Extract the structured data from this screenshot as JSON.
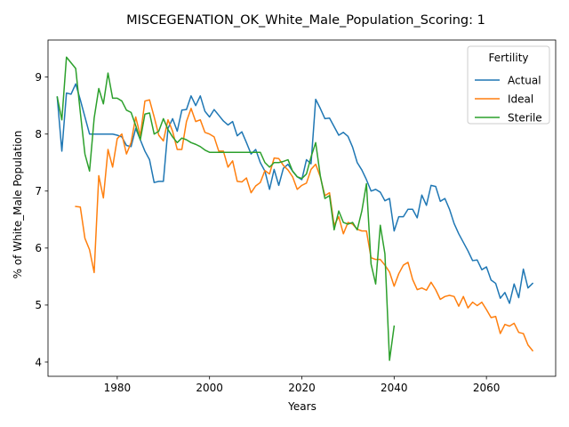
{
  "chart_data": {
    "type": "line",
    "title": "MISCEGENATION_OK_White_Male_Population_Scoring: 1",
    "xlabel": "Years",
    "ylabel": "% of White_Male Population",
    "xlim": [
      1965,
      2075
    ],
    "ylim": [
      3.75,
      9.65
    ],
    "xticks": [
      1980,
      2000,
      2020,
      2040,
      2060
    ],
    "yticks": [
      4,
      5,
      6,
      7,
      8,
      9
    ],
    "grid": false,
    "legend": {
      "title": "Fertility",
      "position": "top-right"
    },
    "series": [
      {
        "name": "Actual",
        "color": "#1f77b4",
        "x": [
          1967,
          1968,
          1969,
          1970,
          1971,
          1972,
          1973,
          1974,
          1975,
          1976,
          1977,
          1978,
          1979,
          1980,
          1981,
          1982,
          1983,
          1984,
          1985,
          1986,
          1987,
          1988,
          1989,
          1990,
          1991,
          1992,
          1993,
          1994,
          1995,
          1996,
          1997,
          1998,
          1999,
          2000,
          2001,
          2002,
          2003,
          2004,
          2005,
          2006,
          2007,
          2008,
          2009,
          2010,
          2011,
          2012,
          2013,
          2014,
          2015,
          2016,
          2017,
          2018,
          2019,
          2020,
          2021,
          2022,
          2023,
          2024,
          2025,
          2026,
          2027,
          2028,
          2029,
          2030,
          2031,
          2032,
          2033,
          2034,
          2035,
          2036,
          2037,
          2038,
          2039,
          2040,
          2041,
          2042,
          2043,
          2044,
          2045,
          2046,
          2047,
          2048,
          2049,
          2050,
          2051,
          2052,
          2053,
          2054,
          2055,
          2056,
          2057,
          2058,
          2059,
          2060,
          2061,
          2062,
          2063,
          2064,
          2065,
          2066,
          2067,
          2068,
          2069,
          2070
        ],
        "values": [
          8.65,
          7.7,
          8.72,
          8.7,
          8.88,
          8.6,
          8.3,
          8.0,
          8.0,
          8.0,
          8.0,
          8.0,
          8.0,
          7.98,
          7.95,
          7.8,
          7.78,
          8.1,
          7.9,
          7.7,
          7.55,
          7.15,
          7.17,
          7.17,
          8.1,
          8.27,
          8.05,
          8.42,
          8.43,
          8.67,
          8.5,
          8.67,
          8.4,
          8.3,
          8.43,
          8.33,
          8.23,
          8.16,
          8.22,
          7.97,
          8.04,
          7.85,
          7.65,
          7.73,
          7.5,
          7.35,
          7.03,
          7.38,
          7.1,
          7.4,
          7.47,
          7.35,
          7.25,
          7.2,
          7.55,
          7.48,
          8.61,
          8.45,
          8.27,
          8.28,
          8.13,
          7.98,
          8.03,
          7.96,
          7.77,
          7.5,
          7.37,
          7.2,
          7.0,
          7.03,
          6.98,
          6.83,
          6.87,
          6.3,
          6.55,
          6.55,
          6.68,
          6.68,
          6.53,
          6.93,
          6.75,
          7.1,
          7.08,
          6.82,
          6.87,
          6.68,
          6.43,
          6.25,
          6.1,
          5.95,
          5.78,
          5.79,
          5.62,
          5.67,
          5.44,
          5.38,
          5.12,
          5.22,
          5.03,
          5.37,
          5.13,
          5.63,
          5.3,
          5.38
        ]
      },
      {
        "name": "Ideal",
        "color": "#ff7f0e",
        "x": [
          1971,
          1972,
          1973,
          1974,
          1975,
          1976,
          1977,
          1978,
          1979,
          1980,
          1981,
          1982,
          1983,
          1984,
          1985,
          1986,
          1987,
          1988,
          1989,
          1990,
          1991,
          1992,
          1993,
          1994,
          1995,
          1996,
          1997,
          1998,
          1999,
          2000,
          2001,
          2002,
          2003,
          2004,
          2005,
          2006,
          2007,
          2008,
          2009,
          2010,
          2011,
          2012,
          2013,
          2014,
          2015,
          2016,
          2017,
          2018,
          2019,
          2020,
          2021,
          2022,
          2023,
          2024,
          2025,
          2026,
          2027,
          2028,
          2029,
          2030,
          2031,
          2032,
          2033,
          2034,
          2035,
          2036,
          2037,
          2038,
          2039,
          2040,
          2041,
          2042,
          2043,
          2044,
          2045,
          2046,
          2047,
          2048,
          2049,
          2050,
          2051,
          2052,
          2053,
          2054,
          2055,
          2056,
          2057,
          2058,
          2059,
          2060,
          2061,
          2062,
          2063,
          2064,
          2065,
          2066,
          2067,
          2068,
          2069,
          2070
        ],
        "values": [
          6.73,
          6.72,
          6.17,
          5.97,
          5.57,
          7.27,
          6.88,
          7.73,
          7.42,
          7.92,
          8.0,
          7.65,
          7.85,
          8.3,
          7.97,
          8.58,
          8.6,
          8.3,
          7.98,
          7.88,
          8.25,
          8.05,
          7.73,
          7.73,
          8.22,
          8.45,
          8.22,
          8.25,
          8.03,
          8.0,
          7.95,
          7.7,
          7.7,
          7.42,
          7.53,
          7.17,
          7.16,
          7.23,
          6.97,
          7.09,
          7.15,
          7.36,
          7.3,
          7.58,
          7.57,
          7.45,
          7.37,
          7.25,
          7.03,
          7.1,
          7.14,
          7.38,
          7.47,
          7.25,
          6.92,
          6.97,
          6.4,
          6.55,
          6.25,
          6.45,
          6.42,
          6.33,
          6.3,
          6.3,
          5.83,
          5.8,
          5.8,
          5.7,
          5.58,
          5.33,
          5.55,
          5.7,
          5.75,
          5.45,
          5.27,
          5.3,
          5.26,
          5.4,
          5.27,
          5.1,
          5.15,
          5.17,
          5.15,
          4.98,
          5.15,
          4.95,
          5.05,
          4.99,
          5.05,
          4.92,
          4.78,
          4.8,
          4.5,
          4.66,
          4.63,
          4.68,
          4.52,
          4.5,
          4.3,
          4.2
        ]
      },
      {
        "name": "Sterile",
        "color": "#2ca02c",
        "x": [
          1967,
          1968,
          1969,
          1970,
          1971,
          1972,
          1973,
          1974,
          1975,
          1976,
          1977,
          1978,
          1979,
          1980,
          1981,
          1982,
          1983,
          1984,
          1985,
          1986,
          1987,
          1988,
          1989,
          1990,
          1991,
          1992,
          1993,
          1994,
          1995,
          1996,
          1997,
          1998,
          1999,
          2000,
          2001,
          2002,
          2003,
          2004,
          2005,
          2006,
          2007,
          2008,
          2009,
          2010,
          2011,
          2012,
          2013,
          2014,
          2015,
          2016,
          2017,
          2018,
          2019,
          2020,
          2021,
          2022,
          2023,
          2024,
          2025,
          2026,
          2027,
          2028,
          2029,
          2030,
          2031,
          2032,
          2033,
          2034,
          2035,
          2036,
          2037,
          2038,
          2039,
          2040
        ],
        "values": [
          8.65,
          8.25,
          9.35,
          9.25,
          9.15,
          8.38,
          7.65,
          7.35,
          8.28,
          8.8,
          8.53,
          9.07,
          8.63,
          8.63,
          8.58,
          8.42,
          8.38,
          8.15,
          7.9,
          8.35,
          8.37,
          8.0,
          8.05,
          8.27,
          8.08,
          7.95,
          7.85,
          7.93,
          7.9,
          7.85,
          7.82,
          7.78,
          7.72,
          7.68,
          7.68,
          7.68,
          7.68,
          7.68,
          7.68,
          7.68,
          7.68,
          7.68,
          7.68,
          7.68,
          7.68,
          7.5,
          7.42,
          7.5,
          7.5,
          7.52,
          7.55,
          7.35,
          7.25,
          7.22,
          7.3,
          7.6,
          7.85,
          7.27,
          6.87,
          6.92,
          6.32,
          6.65,
          6.45,
          6.42,
          6.45,
          6.32,
          6.65,
          7.13,
          5.72,
          5.37,
          6.4,
          5.9,
          4.03,
          4.63
        ]
      }
    ]
  }
}
